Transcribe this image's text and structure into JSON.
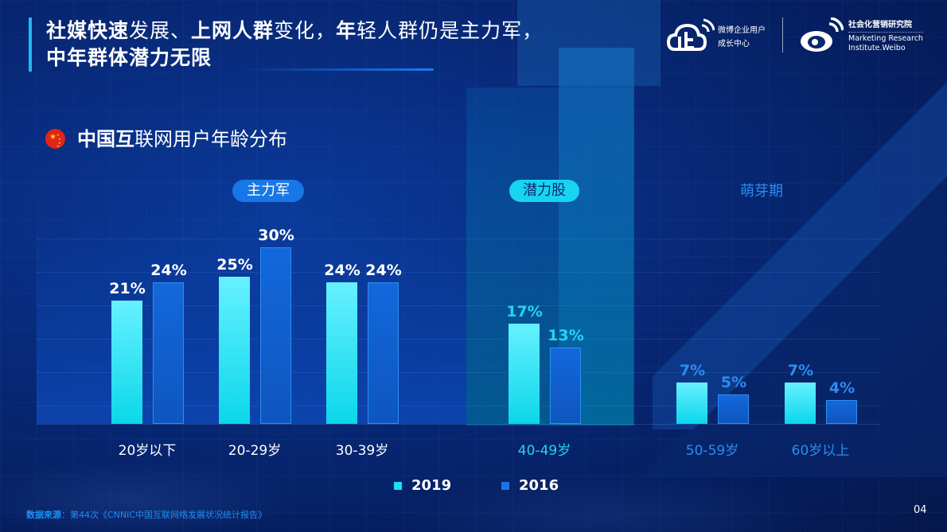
{
  "header": {
    "title_line1_parts": [
      {
        "text": "社媒快速",
        "bold": true
      },
      {
        "text": "发展、",
        "bold": false
      },
      {
        "text": "上网人群",
        "bold": true
      },
      {
        "text": "变化，",
        "bold": false
      },
      {
        "text": "年",
        "bold": true
      },
      {
        "text": "轻人群仍是主力军，",
        "bold": false
      }
    ],
    "title_line1": "社媒快速发展、上网人群变化，年轻人群仍是主力军，",
    "title_line2": "中年群体潜力无限",
    "logo_left_line1": "微博企业用户",
    "logo_left_line2": "成长中心",
    "logo_right_cn": "社会化营销研究院",
    "logo_right_en1": "Marketing Research",
    "logo_right_en2": "Institute.Weibo"
  },
  "subtitle": {
    "bold_part": "中国互",
    "normal_part": "联网用户年龄分布",
    "full": "中国互联网用户年龄分布",
    "icon": "china-flag-icon"
  },
  "zones": {
    "main": "主力军",
    "potential": "潜力股",
    "sprout": "萌芽期"
  },
  "colors": {
    "series_2019": "#19dff2",
    "series_2016": "#1469d8",
    "accent": "#21b8f0",
    "label_cyan": "#24d4f2",
    "label_blue": "#2a8df0"
  },
  "chart_data": {
    "type": "bar",
    "title": "中国互联网用户年龄分布",
    "categories": [
      "20岁以下",
      "20-29岁",
      "30-39岁",
      "40-49岁",
      "50-59岁",
      "60岁以上"
    ],
    "series": [
      {
        "name": "2019",
        "values": [
          21,
          25,
          24,
          17,
          7,
          7
        ]
      },
      {
        "name": "2016",
        "values": [
          24,
          30,
          24,
          13,
          5,
          4
        ]
      }
    ],
    "value_labels_2019": [
      "21%",
      "25%",
      "24%",
      "17%",
      "7%",
      "7%"
    ],
    "value_labels_2016": [
      "24%",
      "30%",
      "24%",
      "13%",
      "5%",
      "4%"
    ],
    "annotations": [
      "主力军",
      "潜力股",
      "萌芽期"
    ],
    "xlabel": "",
    "ylabel": "",
    "unit": "%",
    "grid": false,
    "legend_position": "bottom-center"
  },
  "legend": {
    "item_2019": "2019",
    "item_2016": "2016"
  },
  "footer": {
    "source_label": "数据来源",
    "source_sep": "：",
    "source_text": "第44次《CNNIC中国互联网络发展状况统计报告》",
    "page_number": "04"
  }
}
